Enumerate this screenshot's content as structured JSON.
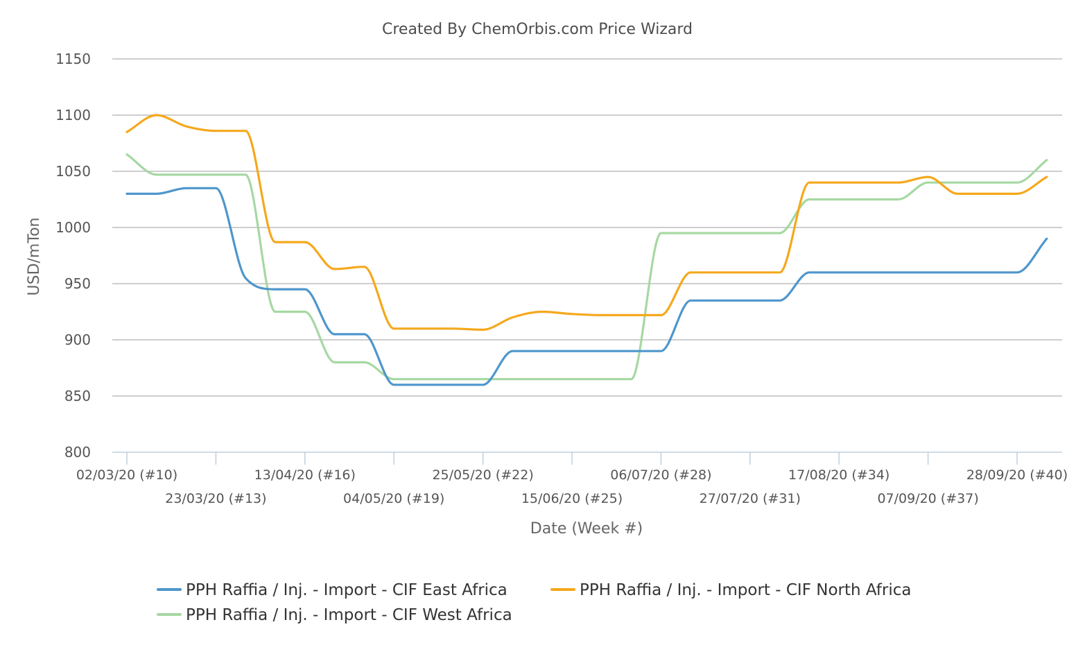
{
  "chart_data": {
    "type": "line",
    "title": "Created By ChemOrbis.com Price Wizard",
    "xlabel": "Date (Week #)",
    "ylabel": "USD/mTon",
    "ylim": [
      800,
      1150
    ],
    "yticks": [
      800,
      850,
      900,
      950,
      1000,
      1050,
      1100,
      1150
    ],
    "grid": true,
    "legend_position": "bottom",
    "x": [
      "02/03/20 (#10)",
      "09/03/20 (#11)",
      "16/03/20 (#12)",
      "23/03/20 (#13)",
      "30/03/20 (#14)",
      "06/04/20 (#15)",
      "13/04/20 (#16)",
      "20/04/20 (#17)",
      "27/04/20 (#18)",
      "04/05/20 (#19)",
      "11/05/20 (#20)",
      "18/05/20 (#21)",
      "25/05/20 (#22)",
      "01/06/20 (#23)",
      "08/06/20 (#24)",
      "15/06/20 (#25)",
      "22/06/20 (#26)",
      "29/06/20 (#27)",
      "06/07/20 (#28)",
      "13/07/20 (#29)",
      "20/07/20 (#30)",
      "27/07/20 (#31)",
      "03/08/20 (#32)",
      "10/08/20 (#33)",
      "17/08/20 (#34)",
      "24/08/20 (#35)",
      "31/08/20 (#36)",
      "07/09/20 (#37)",
      "14/09/20 (#38)",
      "21/09/20 (#39)",
      "28/09/20 (#40)",
      "05/10/20 (#41)"
    ],
    "xtick_labels": [
      "02/03/20 (#10)",
      "23/03/20 (#13)",
      "13/04/20 (#16)",
      "04/05/20 (#19)",
      "25/05/20 (#22)",
      "15/06/20 (#25)",
      "06/07/20 (#28)",
      "27/07/20 (#31)",
      "17/08/20 (#34)",
      "07/09/20 (#37)",
      "28/09/20 (#40)"
    ],
    "series": [
      {
        "name": "PPH Raffia / Inj. - Import - CIF East Africa",
        "color": "#4e96cc",
        "values": [
          1030,
          1030,
          1035,
          1035,
          955,
          945,
          945,
          905,
          905,
          860,
          860,
          860,
          860,
          890,
          890,
          890,
          890,
          890,
          890,
          935,
          935,
          935,
          935,
          960,
          960,
          960,
          960,
          960,
          960,
          960,
          960,
          990
        ]
      },
      {
        "name": "PPH Raffia / Inj. - Import - CIF North Africa",
        "color": "#f5a81c",
        "values": [
          1085,
          1100,
          1090,
          1086,
          1086,
          987,
          987,
          963,
          965,
          910,
          910,
          910,
          909,
          920,
          925,
          923,
          922,
          922,
          922,
          960,
          960,
          960,
          960,
          1040,
          1040,
          1040,
          1040,
          1045,
          1030,
          1030,
          1030,
          1045
        ]
      },
      {
        "name": "PPH Raffia / Inj. - Import - CIF West Africa",
        "color": "#a6d8a2",
        "values": [
          1065,
          1047,
          1047,
          1047,
          1047,
          925,
          925,
          880,
          880,
          865,
          865,
          865,
          865,
          865,
          865,
          865,
          865,
          865,
          995,
          995,
          995,
          995,
          995,
          1025,
          1025,
          1025,
          1025,
          1040,
          1040,
          1040,
          1040,
          1060
        ]
      }
    ]
  }
}
